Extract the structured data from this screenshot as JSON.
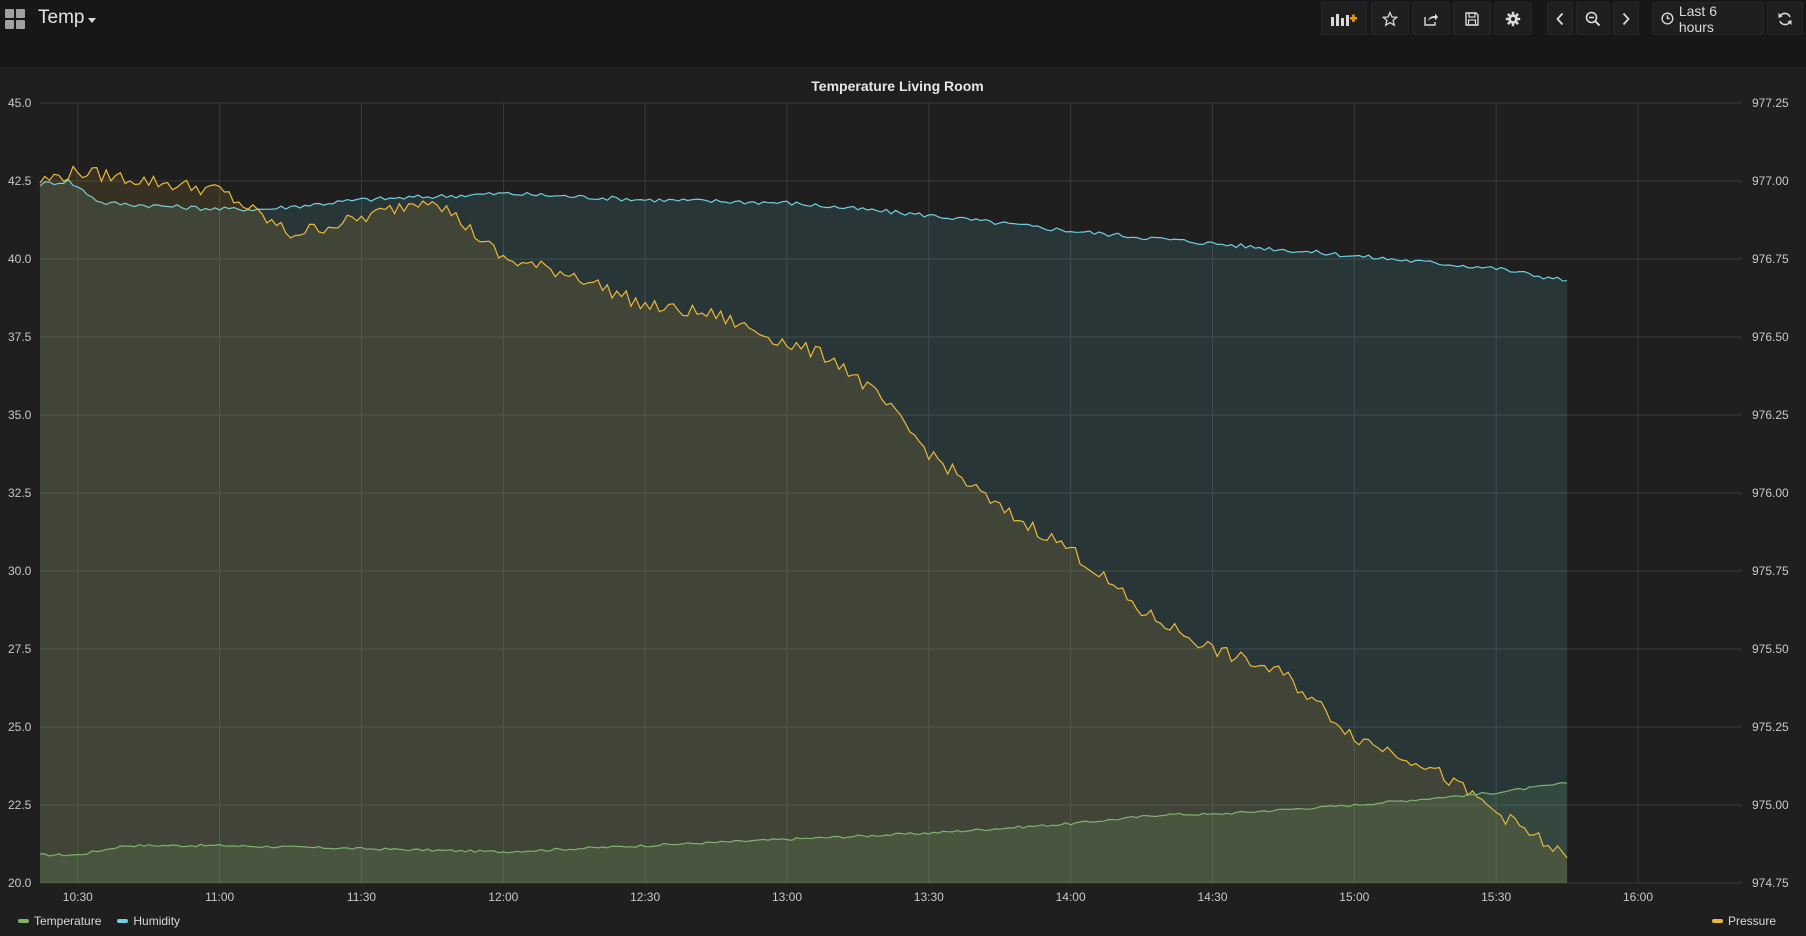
{
  "dashboard": {
    "title": "Temp"
  },
  "toolbar": {
    "buttons": [
      "add-panel",
      "star",
      "share",
      "save",
      "settings"
    ],
    "time_range_label": "Last 6 hours",
    "nav": [
      "time-back",
      "zoom-out",
      "time-forward",
      "refresh"
    ]
  },
  "panel": {
    "title": "Temperature Living Room"
  },
  "legend": {
    "left": [
      {
        "label": "Temperature",
        "color": "#7eb26d"
      },
      {
        "label": "Humidity",
        "color": "#6ed0e0"
      }
    ],
    "right": [
      {
        "label": "Pressure",
        "color": "#eab839"
      }
    ]
  },
  "chart_data": {
    "type": "area",
    "title": "Temperature Living Room",
    "x_ticks": [
      "10:30",
      "11:00",
      "11:30",
      "12:00",
      "12:30",
      "13:00",
      "13:30",
      "14:00",
      "14:30",
      "15:00",
      "15:30",
      "16:00"
    ],
    "x_range": [
      "10:22",
      "16:22"
    ],
    "y_left": {
      "ticks": [
        "45.0",
        "42.5",
        "40.0",
        "37.5",
        "35.0",
        "32.5",
        "30.0",
        "27.5",
        "25.0",
        "22.5",
        "20.0"
      ],
      "ylim": [
        20.0,
        45.0
      ]
    },
    "y_right": {
      "ticks": [
        "977.25",
        "977.00",
        "976.75",
        "976.50",
        "976.25",
        "976.00",
        "975.75",
        "975.50",
        "975.25",
        "975.00",
        "974.75"
      ],
      "ylim": [
        974.75,
        977.25
      ]
    },
    "grid": true,
    "series": [
      {
        "name": "Temperature",
        "axis": "left",
        "color": "#7eb26d",
        "points": [
          [
            "10:22",
            20.9
          ],
          [
            "10:30",
            20.9
          ],
          [
            "10:40",
            21.2
          ],
          [
            "11:00",
            21.2
          ],
          [
            "11:30",
            21.1
          ],
          [
            "12:00",
            21.0
          ],
          [
            "12:30",
            21.2
          ],
          [
            "13:00",
            21.4
          ],
          [
            "13:30",
            21.6
          ],
          [
            "14:00",
            21.9
          ],
          [
            "14:20",
            22.2
          ],
          [
            "14:30",
            22.2
          ],
          [
            "15:00",
            22.5
          ],
          [
            "15:30",
            22.9
          ],
          [
            "15:45",
            23.2
          ]
        ]
      },
      {
        "name": "Humidity",
        "axis": "left",
        "color": "#6ed0e0",
        "points": [
          [
            "10:22",
            42.4
          ],
          [
            "10:28",
            42.5
          ],
          [
            "10:35",
            41.8
          ],
          [
            "11:00",
            41.6
          ],
          [
            "11:10",
            41.6
          ],
          [
            "11:30",
            41.9
          ],
          [
            "12:00",
            42.1
          ],
          [
            "12:30",
            41.9
          ],
          [
            "13:00",
            41.8
          ],
          [
            "13:30",
            41.4
          ],
          [
            "14:00",
            40.9
          ],
          [
            "14:30",
            40.5
          ],
          [
            "15:00",
            40.1
          ],
          [
            "15:30",
            39.7
          ],
          [
            "15:45",
            39.3
          ]
        ]
      },
      {
        "name": "Pressure",
        "axis": "right",
        "color": "#eab839",
        "points": [
          [
            "10:22",
            977.0
          ],
          [
            "10:30",
            977.03
          ],
          [
            "10:45",
            977.0
          ],
          [
            "11:00",
            976.97
          ],
          [
            "11:15",
            976.83
          ],
          [
            "11:30",
            976.88
          ],
          [
            "11:45",
            976.95
          ],
          [
            "12:00",
            976.75
          ],
          [
            "12:15",
            976.7
          ],
          [
            "12:30",
            976.6
          ],
          [
            "12:45",
            976.57
          ],
          [
            "13:00",
            976.48
          ],
          [
            "13:10",
            976.43
          ],
          [
            "13:20",
            976.3
          ],
          [
            "13:30",
            976.13
          ],
          [
            "13:45",
            975.95
          ],
          [
            "14:00",
            975.82
          ],
          [
            "14:15",
            975.62
          ],
          [
            "14:30",
            975.5
          ],
          [
            "14:45",
            975.42
          ],
          [
            "15:00",
            975.22
          ],
          [
            "15:15",
            975.13
          ],
          [
            "15:30",
            974.98
          ],
          [
            "15:45",
            974.83
          ]
        ]
      }
    ]
  }
}
